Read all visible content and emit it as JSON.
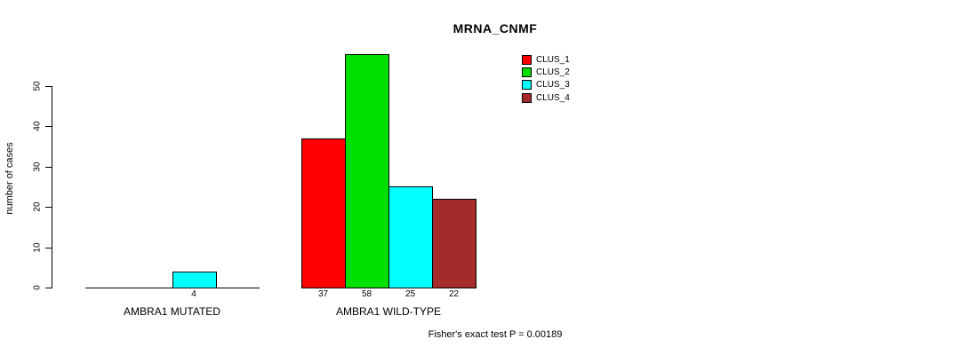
{
  "chart_data": {
    "type": "bar",
    "title": "MRNA_CNMF",
    "ylabel": "number of cases",
    "ylim": [
      0,
      50
    ],
    "yticks": [
      0,
      10,
      20,
      30,
      40,
      50
    ],
    "grid": false,
    "legend_position": "top-right",
    "series": [
      {
        "name": "CLUS_1",
        "color": "#ff0000"
      },
      {
        "name": "CLUS_2",
        "color": "#00e000"
      },
      {
        "name": "CLUS_3",
        "color": "#00ffff"
      },
      {
        "name": "CLUS_4",
        "color": "#a52a2a"
      }
    ],
    "groups": [
      {
        "label": "AMBRA1 MUTATED",
        "values": [
          0,
          0,
          4,
          0
        ]
      },
      {
        "label": "AMBRA1 WILD-TYPE",
        "values": [
          37,
          58,
          25,
          22
        ]
      }
    ],
    "annotation": "Fisher's exact test P = 0.00189"
  }
}
